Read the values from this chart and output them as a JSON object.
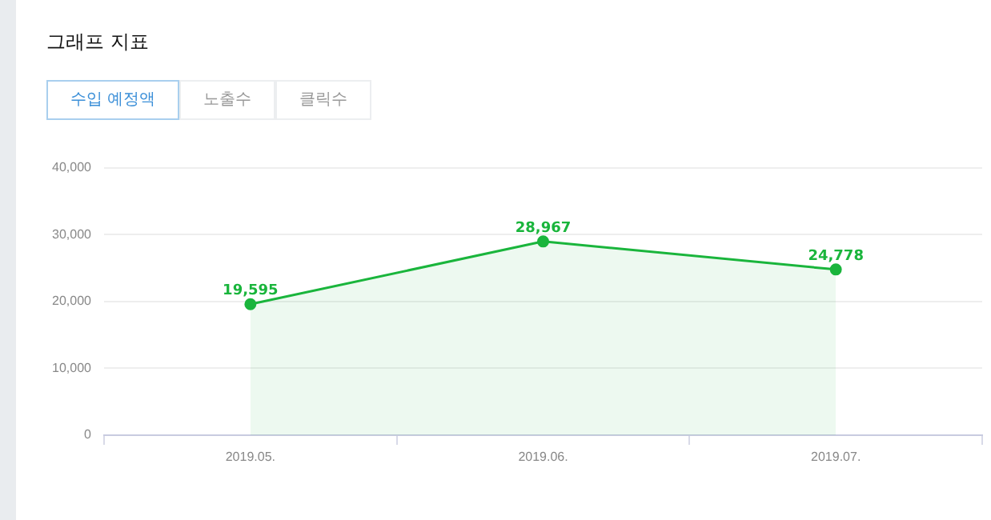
{
  "chart_data": {
    "type": "area",
    "title": "그래프 지표",
    "annotations": [
      "수입 예정액",
      "노출수",
      "클릭수"
    ],
    "categories": [
      "2019.05.",
      "2019.06.",
      "2019.07."
    ],
    "series": [
      {
        "color": "#1ab53c",
        "values": [
          19595,
          28967,
          24778
        ],
        "value_labels": [
          "19,595",
          "28,967",
          "24,778"
        ]
      }
    ],
    "ylim": [
      0,
      40000
    ],
    "yticks": [
      0,
      {
        "value": 10000,
        "label": "10,000"
      },
      {
        "value": 20000,
        "label": "20,000"
      },
      {
        "value": 30000,
        "label": "30,000"
      },
      {
        "value": 40000,
        "label": "40,000"
      }
    ],
    "grid": "y",
    "legend": false,
    "marker": "circle",
    "line_style": "solid"
  }
}
